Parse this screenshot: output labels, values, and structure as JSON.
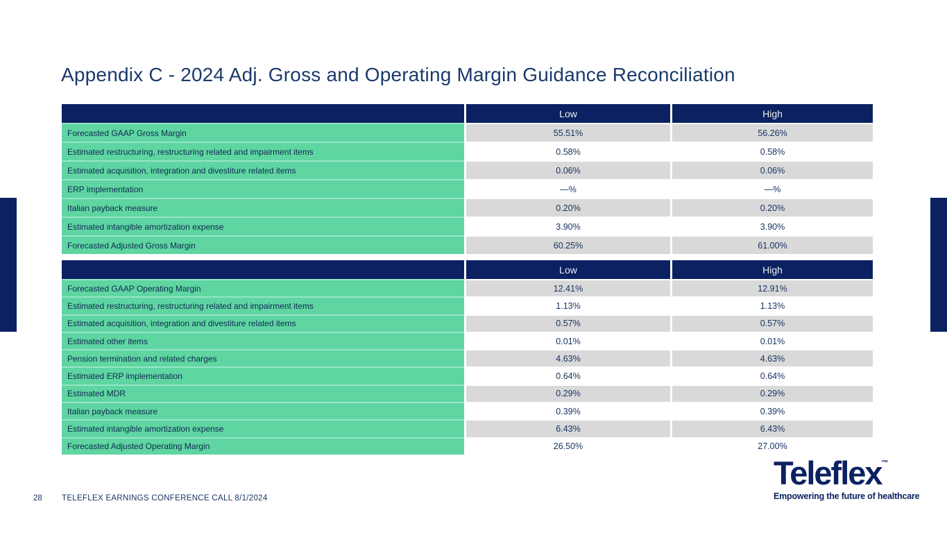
{
  "slide": {
    "title": "Appendix C - 2024 Adj. Gross and Operating Margin Guidance Reconciliation",
    "footer": {
      "page_number": "28",
      "text": "TELEFLEX EARNINGS CONFERENCE CALL 8/1/2024"
    },
    "logo": {
      "brand": "Teleflex",
      "trademark": "™",
      "tagline": "Empowering the future of healthcare"
    }
  },
  "colors": {
    "navy": "#0b2161",
    "green": "#5fd5a1",
    "mint_separator": "#96e6c5",
    "gray": "#d9d9d9",
    "title_text": "#1b3a6b",
    "label_text": "#0d2a52",
    "value_text": "#15305f",
    "header_text": "#eef0f7"
  },
  "tables": [
    {
      "name": "adjusted-gross-margin-reconciliation",
      "columns": [
        "",
        "Low",
        "High"
      ],
      "rows": [
        {
          "label": "Forecasted GAAP Gross Margin",
          "low": "55.51%",
          "high": "56.26%"
        },
        {
          "label": "Estimated restructuring, restructuring related and impairment items",
          "low": "0.58%",
          "high": "0.58%"
        },
        {
          "label": "Estimated acquisition, integration and divestiture related items",
          "low": "0.06%",
          "high": "0.06%"
        },
        {
          "label": "ERP implementation",
          "low": "—%",
          "high": "—%"
        },
        {
          "label": "Italian payback measure",
          "low": "0.20%",
          "high": "0.20%"
        },
        {
          "label": "Estimated intangible amortization expense",
          "low": "3.90%",
          "high": "3.90%"
        },
        {
          "label": "Forecasted Adjusted Gross Margin",
          "low": "60.25%",
          "high": "61.00%"
        }
      ]
    },
    {
      "name": "adjusted-operating-margin-reconciliation",
      "columns": [
        "",
        "Low",
        "High"
      ],
      "rows": [
        {
          "label": "Forecasted GAAP Operating Margin",
          "low": "12.41%",
          "high": "12.91%"
        },
        {
          "label": "Estimated restructuring, restructuring related and impairment items",
          "low": "1.13%",
          "high": "1.13%"
        },
        {
          "label": "Estimated acquisition, integration and divestiture related items",
          "low": "0.57%",
          "high": "0.57%"
        },
        {
          "label": "Estimated other items",
          "low": "0.01%",
          "high": "0.01%"
        },
        {
          "label": "Pension termination and related charges",
          "low": "4.63%",
          "high": "4.63%"
        },
        {
          "label": "Estimated ERP implementation",
          "low": "0.64%",
          "high": "0.64%"
        },
        {
          "label": "Estimated MDR",
          "low": "0.29%",
          "high": "0.29%"
        },
        {
          "label": "Italian payback measure",
          "low": "0.39%",
          "high": "0.39%"
        },
        {
          "label": "Estimated intangible amortization expense",
          "low": "6.43%",
          "high": "6.43%"
        },
        {
          "label": "Forecasted Adjusted Operating Margin",
          "low": "26.50%",
          "high": "27.00%"
        }
      ]
    }
  ]
}
